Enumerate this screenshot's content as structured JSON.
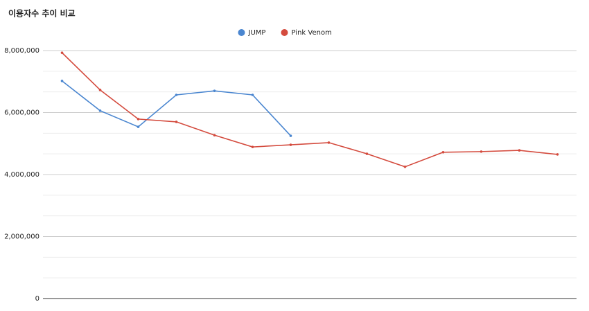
{
  "chart_data": {
    "type": "line",
    "title": "이용자수 추이 비교",
    "categories": [
      null,
      null,
      null,
      null,
      null,
      null,
      null,
      null,
      null,
      null,
      null,
      null,
      null,
      null
    ],
    "series": [
      {
        "name": "JUMP",
        "color": "#4a86d0",
        "values": [
          7020000,
          6060000,
          5540000,
          6570000,
          6700000,
          6570000,
          5250000,
          null,
          null,
          null,
          null,
          null,
          null,
          null
        ]
      },
      {
        "name": "Pink Venom",
        "color": "#d44b3e",
        "values": [
          7930000,
          6730000,
          5790000,
          5700000,
          5270000,
          4890000,
          4960000,
          5030000,
          4670000,
          4250000,
          4720000,
          4740000,
          4780000,
          4650000
        ]
      }
    ],
    "ylim": [
      0,
      8000000
    ],
    "yticks": [
      0,
      {
        "value": 2000000,
        "label": "2,000,000"
      },
      {
        "value": 4000000,
        "label": "4,000,000"
      },
      {
        "value": 6000000,
        "label": "6,000,000"
      },
      {
        "value": 8000000,
        "label": "8,000,000"
      }
    ],
    "grid": true,
    "legend": "top"
  }
}
